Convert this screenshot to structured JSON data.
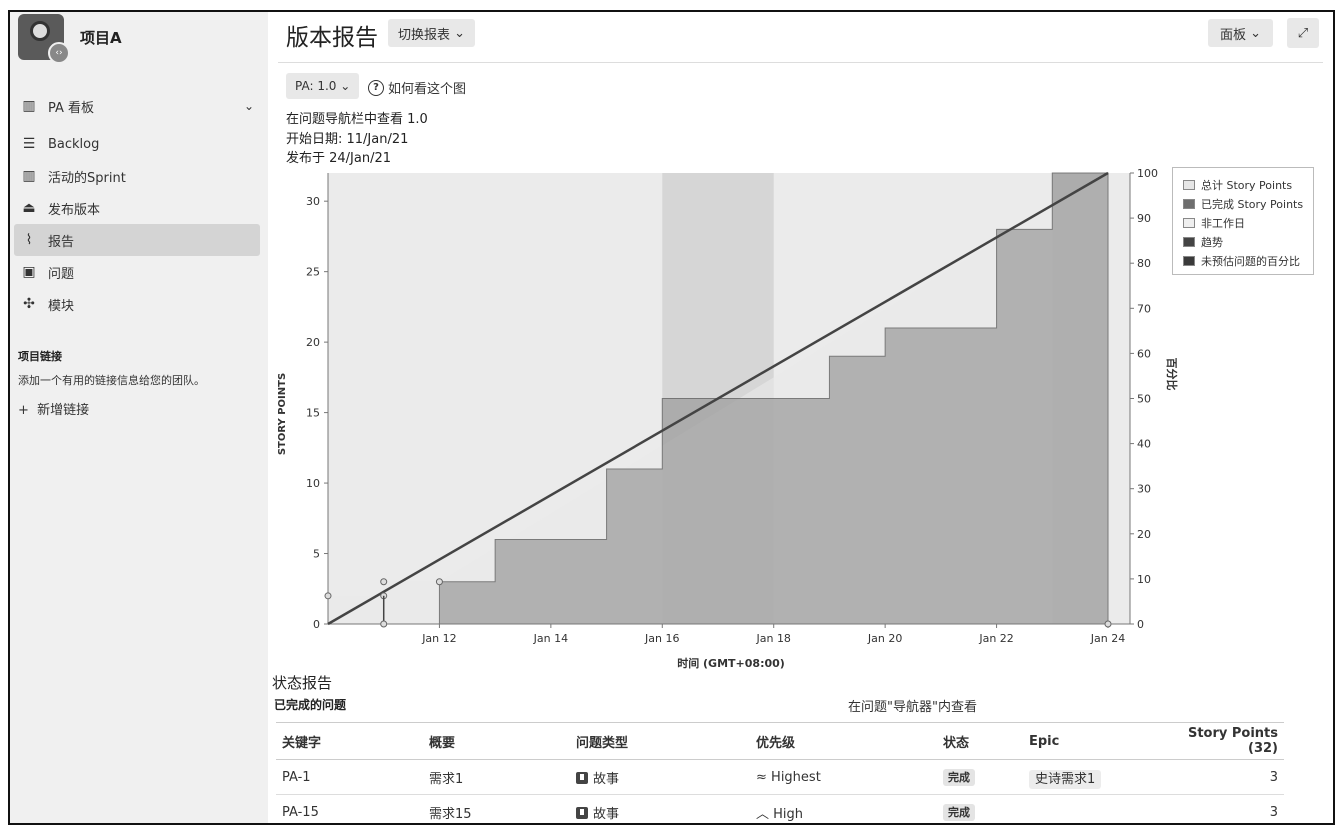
{
  "project": {
    "name": "项目A"
  },
  "sidebar": {
    "board": "PA 看板",
    "items": [
      {
        "label": "Backlog",
        "icon": "backlog-icon"
      },
      {
        "label": "活动的Sprint",
        "icon": "sprint-icon"
      },
      {
        "label": "发布版本",
        "icon": "release-icon"
      },
      {
        "label": "报告",
        "icon": "report-icon"
      },
      {
        "label": "问题",
        "icon": "issues-icon"
      },
      {
        "label": "模块",
        "icon": "components-icon"
      }
    ],
    "links_title": "项目链接",
    "links_desc": "添加一个有用的链接信息给您的团队。",
    "add_link": "新增链接"
  },
  "header": {
    "title": "版本报告",
    "switch_report": "切换报表",
    "panel": "面板"
  },
  "report": {
    "version_select": "PA: 1.0",
    "howto": "如何看这个图",
    "view_in_navigator": "在问题导航栏中查看 1.0",
    "start_date": "开始日期: 11/Jan/21",
    "release_date": "发布于 24/Jan/21"
  },
  "chart_data": {
    "type": "area",
    "x_dates": [
      "2021-01-10",
      "2021-01-11",
      "2021-01-12",
      "2021-01-13",
      "2021-01-14",
      "2021-01-15",
      "2021-01-16",
      "2021-01-17",
      "2021-01-18",
      "2021-01-19",
      "2021-01-20",
      "2021-01-21",
      "2021-01-22",
      "2021-01-23",
      "2021-01-24"
    ],
    "x_ticks": [
      "Jan 12",
      "Jan 14",
      "Jan 16",
      "Jan 18",
      "Jan 20",
      "Jan 22",
      "Jan 24"
    ],
    "xlabel": "时间 (GMT+08:00)",
    "ylabel": "STORY POINTS",
    "y2label": "百分比",
    "ylim": [
      0,
      32
    ],
    "y_ticks": [
      0,
      5,
      10,
      15,
      20,
      25,
      30
    ],
    "y2lim": [
      0,
      100
    ],
    "y2_ticks": [
      0,
      10,
      20,
      30,
      40,
      50,
      60,
      70,
      80,
      90,
      100
    ],
    "total_series": {
      "name": "总计 Story Points",
      "points": [
        [
          "2021-01-10",
          2
        ],
        [
          "2021-01-11",
          2
        ],
        [
          "2021-01-11",
          3
        ],
        [
          "2021-01-12",
          3
        ],
        [
          "2021-01-24",
          32
        ]
      ]
    },
    "completed_series": {
      "name": "已完成 Story Points",
      "points": [
        [
          "2021-01-11",
          0
        ],
        [
          "2021-01-12",
          0
        ],
        [
          "2021-01-12",
          3
        ],
        [
          "2021-01-13",
          3
        ],
        [
          "2021-01-13",
          6
        ],
        [
          "2021-01-15",
          6
        ],
        [
          "2021-01-15",
          11
        ],
        [
          "2021-01-16",
          11
        ],
        [
          "2021-01-16",
          16
        ],
        [
          "2021-01-18",
          16
        ],
        [
          "2021-01-19",
          16
        ],
        [
          "2021-01-19",
          19
        ],
        [
          "2021-01-20",
          19
        ],
        [
          "2021-01-20",
          21
        ],
        [
          "2021-01-22",
          21
        ],
        [
          "2021-01-22",
          28
        ],
        [
          "2021-01-23",
          28
        ],
        [
          "2021-01-23",
          32
        ],
        [
          "2021-01-24",
          32
        ]
      ]
    },
    "trend": {
      "name": "趋势",
      "from": [
        "2021-01-10",
        0
      ],
      "to": [
        "2021-01-24",
        32
      ]
    },
    "non_working_days": [
      [
        "2021-01-16",
        "2021-01-18"
      ],
      [
        "2021-01-23",
        "2021-01-24"
      ]
    ],
    "legend": [
      {
        "label": "总计 Story Points",
        "color": "#e6e6e6"
      },
      {
        "label": "已完成 Story Points",
        "color": "#6e6e6e"
      },
      {
        "label": "非工作日",
        "color": "#efefef"
      },
      {
        "label": "趋势",
        "color": "#444444"
      },
      {
        "label": "未预估问题的百分比",
        "color": "#3a3a3a"
      }
    ],
    "legend_position": "top-right"
  },
  "status": {
    "title": "状态报告",
    "completed_title": "已完成的问题",
    "view_in_navigator": "在问题\"导航器\"内查看",
    "columns": [
      "关键字",
      "概要",
      "问题类型",
      "优先级",
      "状态",
      "Epic",
      "Story Points (32)"
    ],
    "rows": [
      {
        "key": "PA-1",
        "summary": "需求1",
        "type": "故事",
        "priority": "Highest",
        "priority_icon": "≈",
        "status": "完成",
        "epic": "史诗需求1",
        "points": "3"
      },
      {
        "key": "PA-15",
        "summary": "需求15",
        "type": "故事",
        "priority": "High",
        "priority_icon": "︿",
        "status": "完成",
        "epic": "",
        "points": "3"
      }
    ]
  }
}
